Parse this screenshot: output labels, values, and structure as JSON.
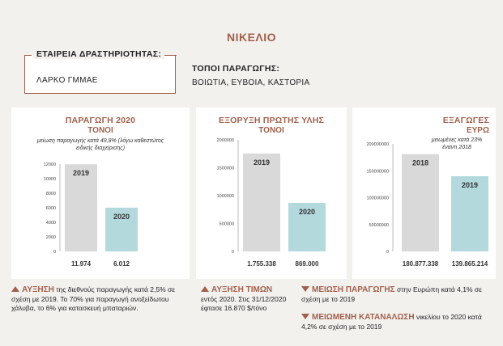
{
  "header": {
    "title": "ΝΙΚΕΛΙΟ"
  },
  "company": {
    "label": "ΕΤΑΙΡΕΙΑ ΔΡΑΣΤΗΡΙΟΤΗΤΑΣ:",
    "value": "ΛΑΡΚΟ ΓΜΜΑΕ"
  },
  "production_sites": {
    "label": "ΤΟΠΟΙ ΠΑΡΑΓΩΓΗΣ:",
    "value": "ΒΟΙΩΤΙΑ, ΕΥΒΟΙΑ, ΚΑΣΤΟΡΙΑ"
  },
  "colors": {
    "accent": "#a0604c",
    "bar_first": "#d9d9d9",
    "bar_second": "#b3d9dd"
  },
  "chart_data": [
    {
      "type": "bar",
      "title": "ΠΑΡΑΓΩΓΗ 2020",
      "subtitle": "ΤΟΝΟΙ",
      "note": "μείωση παραγωγής κατά 49,8% (λόγω καθεστώτος ειδικής διαχείρισης)",
      "categories": [
        "2019",
        "2020"
      ],
      "values": [
        11974,
        6012
      ],
      "value_labels": [
        "11.974",
        "6.012"
      ],
      "yticks": [
        0,
        2000,
        4000,
        6000,
        8000,
        10000,
        12000
      ],
      "ylim": [
        0,
        12000
      ]
    },
    {
      "type": "bar",
      "title": "ΕΞΟΡΥΞΗ ΠΡΩΤΗΣ ΥΛΗΣ",
      "subtitle": "ΤΟΝΟΙ",
      "categories": [
        "2019",
        "2020"
      ],
      "values": [
        1755338,
        869000
      ],
      "value_labels": [
        "1.755.338",
        "869.000"
      ],
      "yticks": [
        0,
        500000,
        1000000,
        1500000,
        2000000
      ],
      "ylim": [
        0,
        2000000
      ]
    },
    {
      "type": "bar",
      "title": "ΕΞΑΓΩΓΕΣ",
      "subtitle": "ΕΥΡΩ",
      "note": "μειωμένες κατά 23% έναντι 2018",
      "categories": [
        "2018",
        "2019"
      ],
      "values": [
        180877338,
        139865214
      ],
      "value_labels": [
        "180.877.338",
        "139.865.214"
      ],
      "yticks": [
        0,
        50000000,
        100000000,
        150000000,
        200000000
      ],
      "ylim": [
        0,
        200000000
      ]
    }
  ],
  "footer": {
    "item1": {
      "head": "ΑΥΞΗΣΗ",
      "text": " της διεθνούς παραγωγής κατά 2,5% σε σχέση με 2019. Το 70% για παραγωγή ανοξείδωτου χάλυβα, το 6% για κατασκευή μπαταριών."
    },
    "item2": {
      "head": "ΑΥΞΗΣΗ ΤΙΜΩΝ",
      "text": "εντός 2020. Στις 31/12/2020 έφτασε 16.870 $/τόνο"
    },
    "item3": {
      "head": "ΜΕΙΩΣΗ ΠΑΡΑΓΩΓΗΣ",
      "text": " στην Ευρώπη κατά 4,1% σε σχέση με το 2019"
    },
    "item4": {
      "head": "ΜΕΙΩΜΕΝΗ ΚΑΤΑΝΑΛΩΣΗ",
      "text": " νικελίου το 2020 κατά 4,2% σε σχέση με το 2019"
    }
  }
}
